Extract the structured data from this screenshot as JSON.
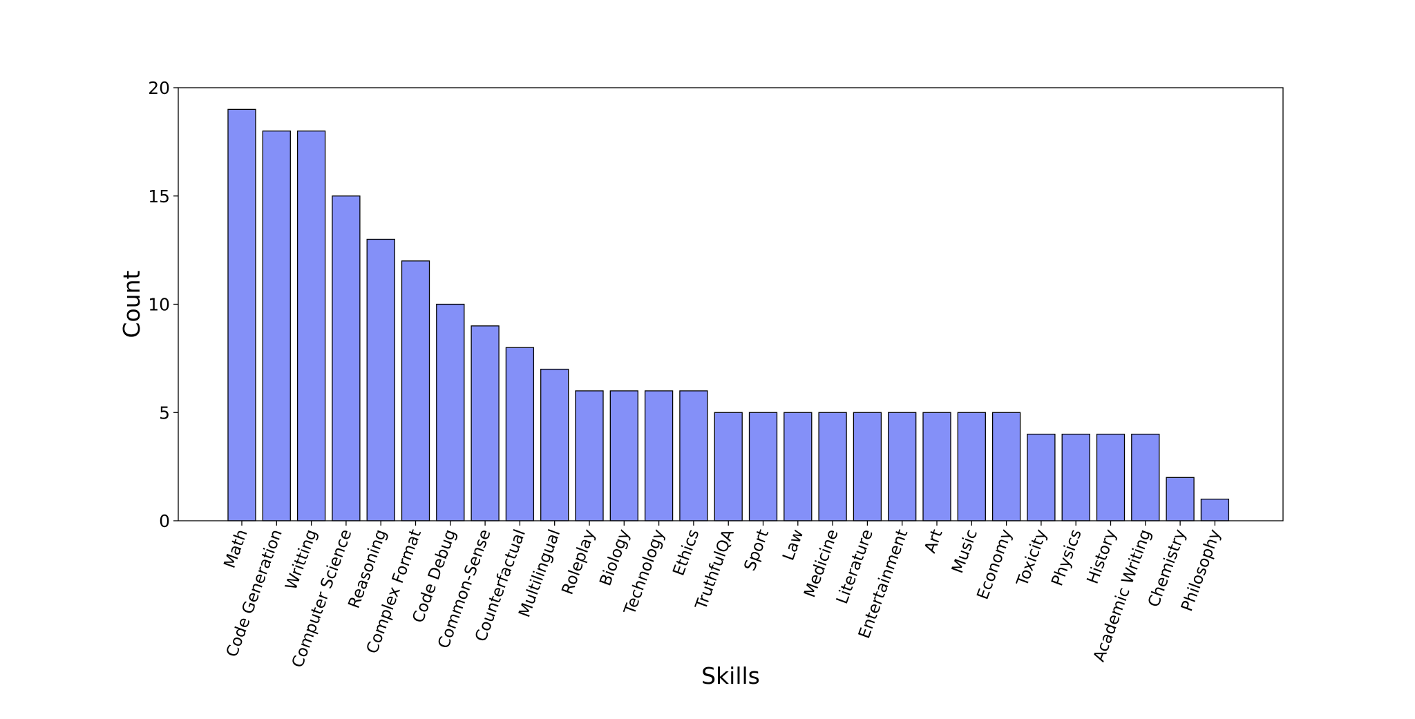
{
  "chart_data": {
    "type": "bar",
    "title": "",
    "xlabel": "Skills",
    "ylabel": "Count",
    "ylim": [
      0,
      20
    ],
    "yticks": [
      0,
      5,
      10,
      15,
      20
    ],
    "grid": false,
    "bar_color": "#8490f8",
    "edge_color": "#000000",
    "categories": [
      "Math",
      "Code Generation",
      "Writting",
      "Computer Science",
      "Reasoning",
      "Complex Format",
      "Code Debug",
      "Common-Sense",
      "Counterfactual",
      "Multilingual",
      "Roleplay",
      "Biology",
      "Technology",
      "Ethics",
      "TruthfulQA",
      "Sport",
      "Law",
      "Medicine",
      "Literature",
      "Entertainment",
      "Art",
      "Music",
      "Economy",
      "Toxicity",
      "Physics",
      "History",
      "Academic Writing",
      "Chemistry",
      "Philosophy"
    ],
    "values": [
      19,
      18,
      18,
      15,
      13,
      12,
      10,
      9,
      8,
      7,
      6,
      6,
      6,
      6,
      5,
      5,
      5,
      5,
      5,
      5,
      5,
      5,
      5,
      4,
      4,
      4,
      4,
      2,
      1
    ]
  }
}
